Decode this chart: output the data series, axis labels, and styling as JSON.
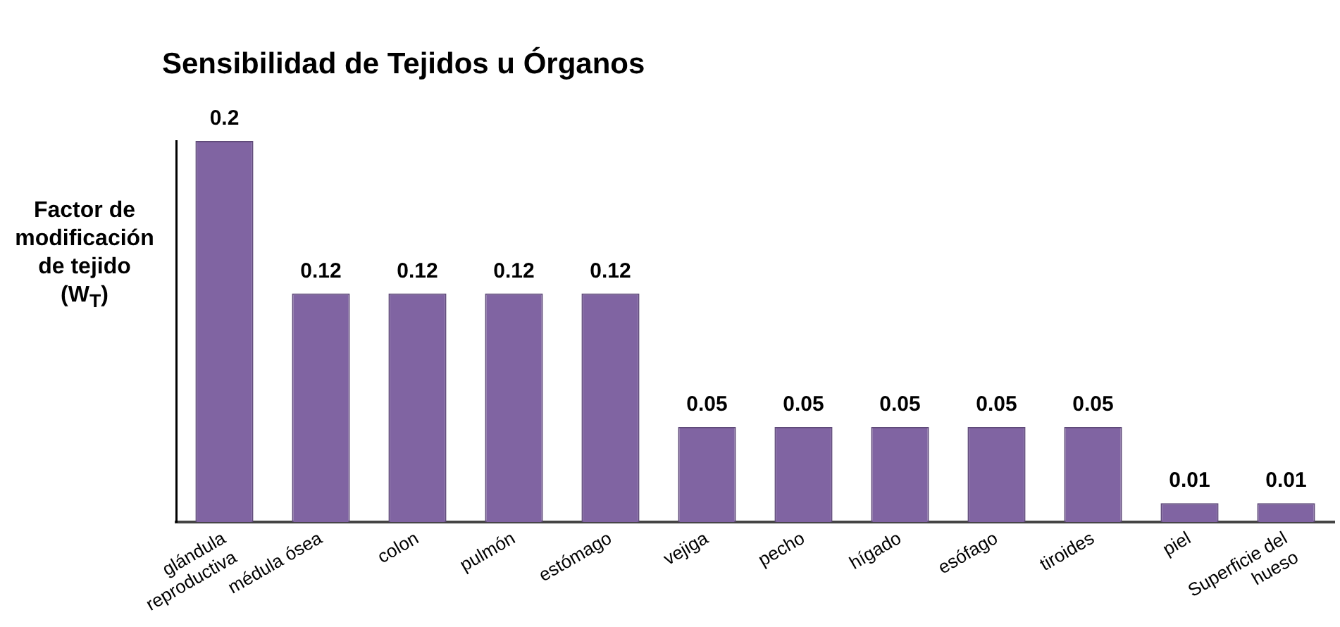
{
  "chart_data": {
    "type": "bar",
    "title": "Sensibilidad de Tejidos u Órganos",
    "ylabel": "Factor de modificación de tejido (W$_{T}$)",
    "categories": [
      "glándula\nreproductiva",
      "médula ósea",
      "colon",
      "pulmón",
      "estómago",
      "vejiga",
      "pecho",
      "hígado",
      "esófago",
      "tiroides",
      "piel",
      "Superficie del\nhueso"
    ],
    "values": [
      0.2,
      0.12,
      0.12,
      0.12,
      0.12,
      0.05,
      0.05,
      0.05,
      0.05,
      0.05,
      0.01,
      0.01
    ],
    "color": "#8064a2",
    "ylim": [
      0,
      0.2
    ],
    "data_labels": true
  }
}
